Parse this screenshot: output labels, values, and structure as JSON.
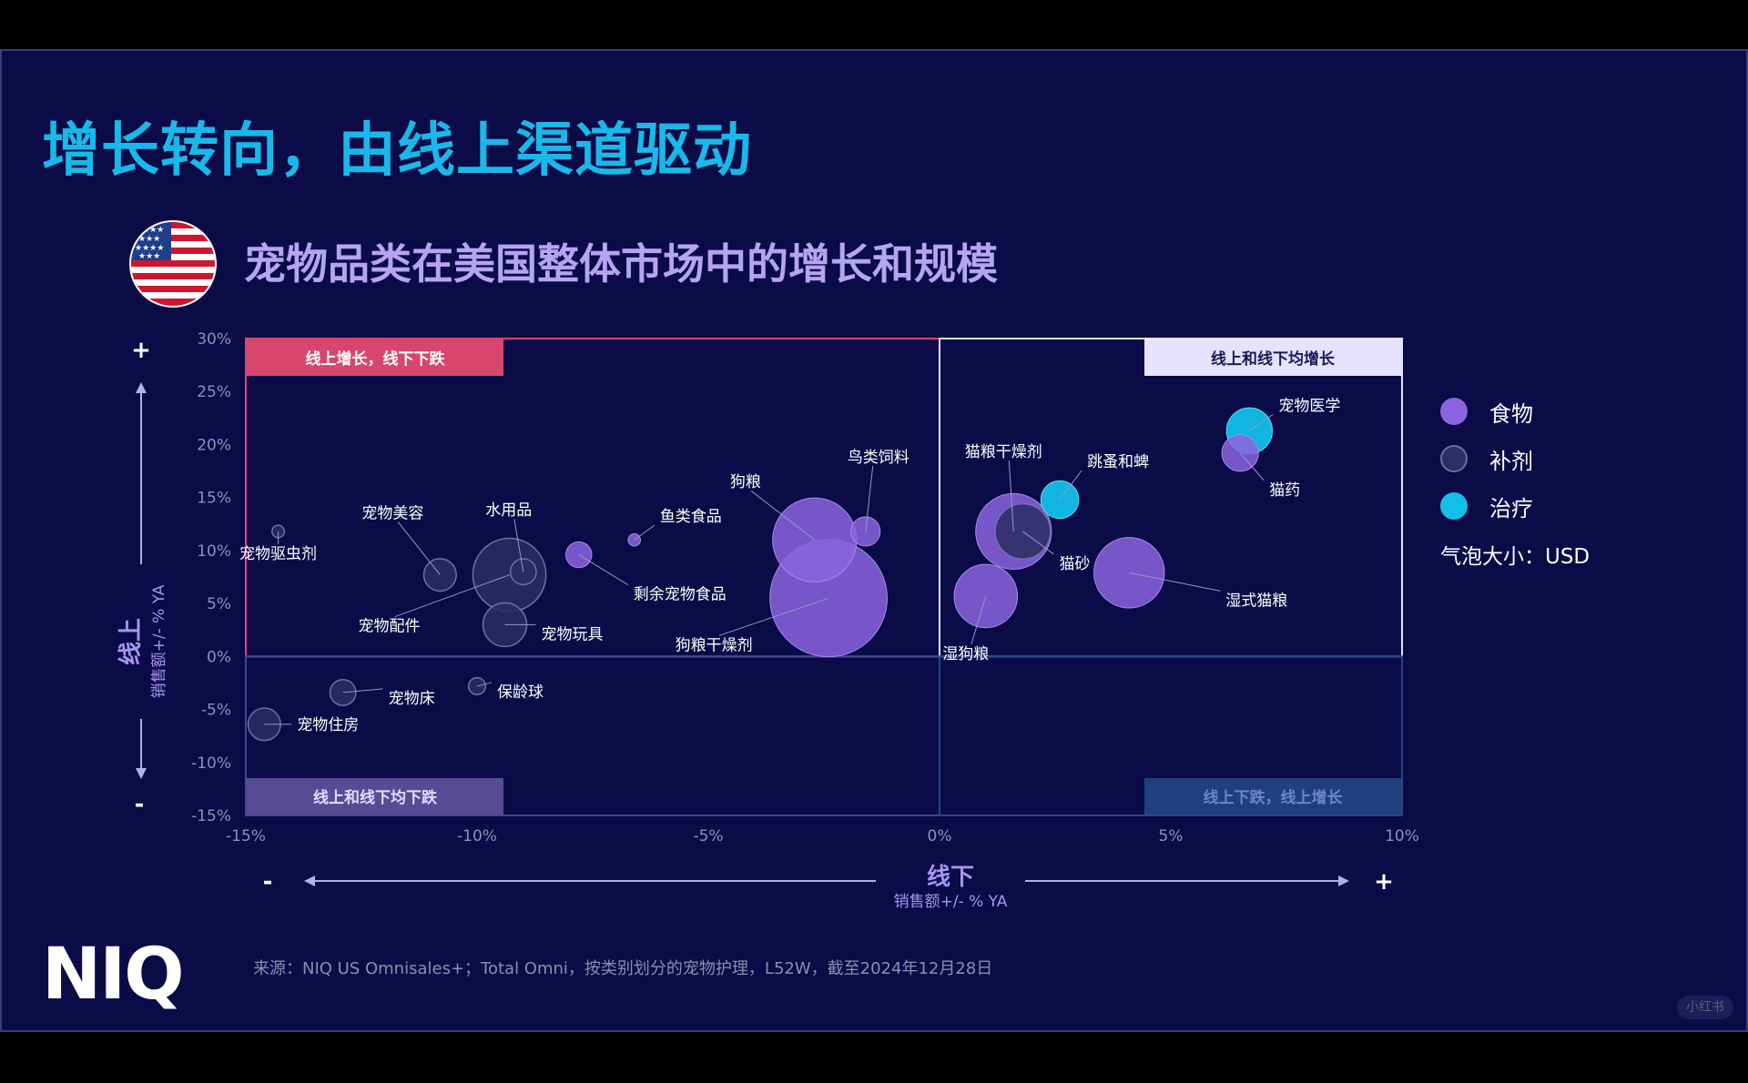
{
  "slide": {
    "title": "增长转向，由线上渠道驱动",
    "subtitle": "宠物品类在美国整体市场中的增长和规模",
    "logo": "NIQ",
    "source": "来源：NIQ US Omnisales+；Total Omni，按类别划分的宠物护理，L52W，截至2024年12月28日",
    "watermark": "小红书"
  },
  "legend": {
    "items": [
      {
        "label": "食物",
        "color": "#8b64e0"
      },
      {
        "label": "补剂",
        "color": "#2b2d63"
      },
      {
        "label": "治疗",
        "color": "#12bfea"
      }
    ],
    "size_note": "气泡大小：USD"
  },
  "chart_data": {
    "type": "scatter",
    "title": "",
    "xlim": [
      -15,
      10
    ],
    "ylim": [
      -15,
      30
    ],
    "x_ticks": [
      "-15%",
      "-10%",
      "-5%",
      "0%",
      "5%",
      "10%"
    ],
    "y_ticks": [
      "30%",
      "25%",
      "20%",
      "15%",
      "10%",
      "5%",
      "0%",
      "-5%",
      "-10%",
      "-15%"
    ],
    "x_axis": {
      "title": "线下",
      "subtitle": "销售额+/- % YA",
      "minus": "-",
      "plus": "+"
    },
    "y_axis": {
      "title": "线上",
      "subtitle": "销售额+/- % YA",
      "minus": "-",
      "plus": "+"
    },
    "quadrants": {
      "top_left": "线上增长，线下下跌",
      "top_right": "线上和线下均增长",
      "bottom_left": "线上和线下均下跌",
      "bottom_right": "线上下跌，线上增长"
    },
    "series_colors": {
      "food": "#8b64e0",
      "supplement": "#2b2d63",
      "treatment": "#12bfea"
    },
    "points": [
      {
        "name": "宠物驱虫剂",
        "x": -14.3,
        "y": 11.8,
        "size": 0.08,
        "category": "supplement"
      },
      {
        "name": "宠物美容",
        "x": -10.8,
        "y": 7.7,
        "size": 0.55,
        "category": "supplement"
      },
      {
        "name": "水用品",
        "x": -9.0,
        "y": 8.0,
        "size": 0.35,
        "category": "supplement"
      },
      {
        "name": "宠物配件",
        "x": -9.3,
        "y": 7.7,
        "size": 2.8,
        "category": "supplement"
      },
      {
        "name": "宠物玩具",
        "x": -9.4,
        "y": 3.0,
        "size": 1.0,
        "category": "supplement"
      },
      {
        "name": "剩余宠物食品",
        "x": -7.8,
        "y": 9.6,
        "size": 0.35,
        "category": "food"
      },
      {
        "name": "鱼类食品",
        "x": -6.6,
        "y": 11.0,
        "size": 0.08,
        "category": "food"
      },
      {
        "name": "狗粮",
        "x": -2.7,
        "y": 11.0,
        "size": 3.7,
        "category": "food"
      },
      {
        "name": "狗粮干燥剂",
        "x": -2.4,
        "y": 5.5,
        "size": 7.2,
        "category": "food"
      },
      {
        "name": "鸟类饲料",
        "x": -1.6,
        "y": 11.8,
        "size": 0.45,
        "category": "food"
      },
      {
        "name": "宠物床",
        "x": -12.9,
        "y": -3.4,
        "size": 0.35,
        "category": "supplement"
      },
      {
        "name": "保龄球",
        "x": -10.0,
        "y": -2.8,
        "size": 0.15,
        "category": "supplement"
      },
      {
        "name": "宠物住房",
        "x": -14.6,
        "y": -6.4,
        "size": 0.55,
        "category": "supplement"
      },
      {
        "name": "猫粮干燥剂",
        "x": 1.6,
        "y": 11.8,
        "size": 3.0,
        "category": "food"
      },
      {
        "name": "猫砂",
        "x": 1.8,
        "y": 11.8,
        "size": 1.6,
        "category": "supplement"
      },
      {
        "name": "湿狗粮",
        "x": 1.0,
        "y": 5.7,
        "size": 2.1,
        "category": "food"
      },
      {
        "name": "跳蚤和蜱",
        "x": 2.6,
        "y": 14.8,
        "size": 0.75,
        "category": "treatment"
      },
      {
        "name": "湿式猫粮",
        "x": 4.1,
        "y": 7.9,
        "size": 2.6,
        "category": "food"
      },
      {
        "name": "宠物医学",
        "x": 6.7,
        "y": 21.3,
        "size": 1.1,
        "category": "treatment"
      },
      {
        "name": "猫药",
        "x": 6.5,
        "y": 19.2,
        "size": 0.7,
        "category": "food"
      }
    ]
  }
}
